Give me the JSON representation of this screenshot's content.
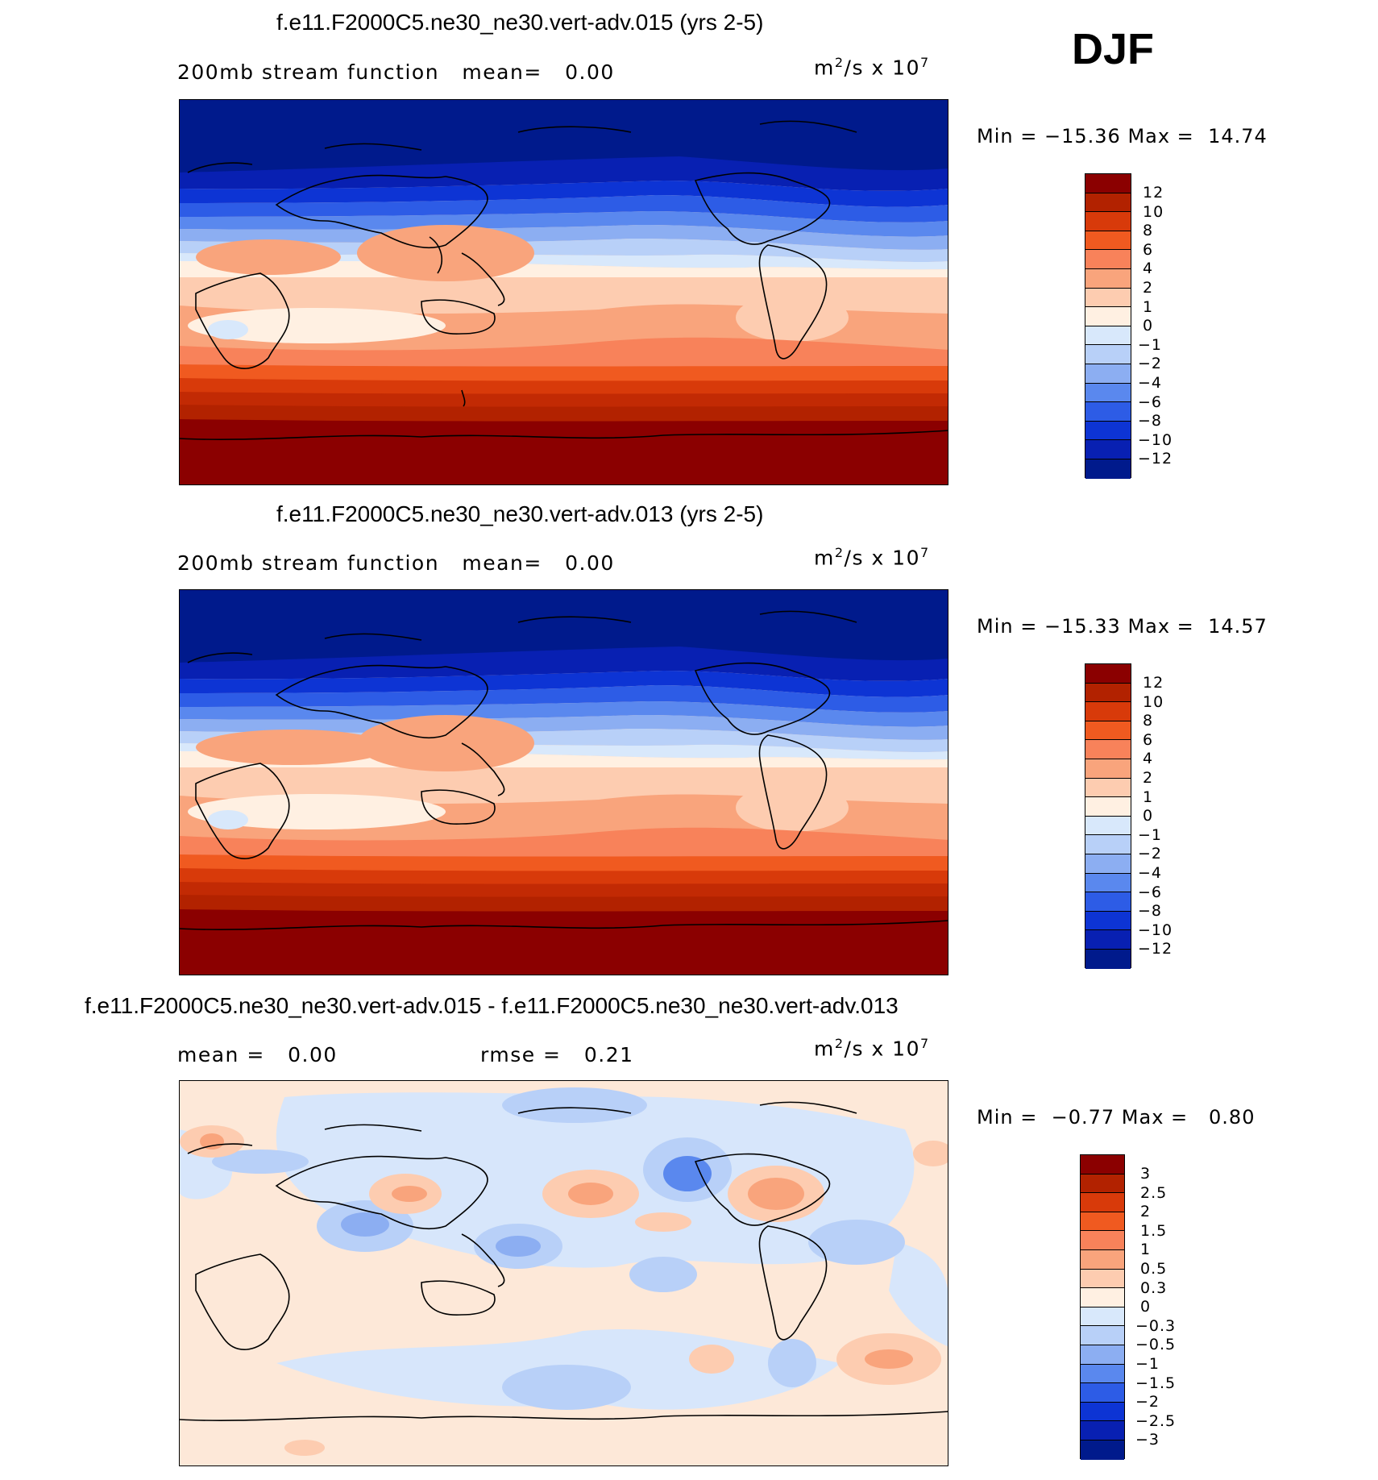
{
  "season": "DJF",
  "panels": [
    {
      "title": "f.e11.F2000C5.ne30_ne30.vert-adv.015 (yrs 2-5)",
      "variable": "200mb stream function",
      "mean_label": "mean=",
      "mean_value": "0.00",
      "units_base": "m",
      "units_exp": "2",
      "units_rest": "/s x 10",
      "units_exp2": "7",
      "min_label": "Min =",
      "min_value": "−15.36",
      "max_label": "Max =",
      "max_value": "14.74",
      "levels": [
        "12",
        "10",
        "8",
        "6",
        "4",
        "2",
        "1",
        "0",
        "−1",
        "−2",
        "−4",
        "−6",
        "−8",
        "−10",
        "−12"
      ]
    },
    {
      "title": "f.e11.F2000C5.ne30_ne30.vert-adv.013 (yrs 2-5)",
      "variable": "200mb stream function",
      "mean_label": "mean=",
      "mean_value": "0.00",
      "units_base": "m",
      "units_exp": "2",
      "units_rest": "/s x 10",
      "units_exp2": "7",
      "min_label": "Min =",
      "min_value": "−15.33",
      "max_label": "Max =",
      "max_value": "14.57",
      "levels": [
        "12",
        "10",
        "8",
        "6",
        "4",
        "2",
        "1",
        "0",
        "−1",
        "−2",
        "−4",
        "−6",
        "−8",
        "−10",
        "−12"
      ]
    },
    {
      "title": "f.e11.F2000C5.ne30_ne30.vert-adv.015 - f.e11.F2000C5.ne30_ne30.vert-adv.013",
      "mean_label": "mean =",
      "mean_value": "0.00",
      "rmse_label": "rmse =",
      "rmse_value": "0.21",
      "units_base": "m",
      "units_exp": "2",
      "units_rest": "/s x 10",
      "units_exp2": "7",
      "min_label": "Min =",
      "min_value": "−0.77",
      "max_label": "Max =",
      "max_value": "0.80",
      "levels": [
        "3",
        "2.5",
        "2",
        "1.5",
        "1",
        "0.5",
        "0.3",
        "0",
        "−0.3",
        "−0.5",
        "−1",
        "−1.5",
        "−2",
        "−2.5",
        "−3"
      ]
    }
  ],
  "colors": {
    "palette": [
      "#8b0000",
      "#b22200",
      "#d83a0a",
      "#f05a20",
      "#f8825a",
      "#f9a47c",
      "#fdccb0",
      "#fff0e2",
      "#d8e8fb",
      "#b8d0f8",
      "#8caef2",
      "#5a88ee",
      "#2d5ce6",
      "#0d34d4",
      "#0820b2",
      "#001a8c"
    ],
    "diff_bg": "#fde8d8",
    "diff_neg": "#d7e6fb"
  }
}
